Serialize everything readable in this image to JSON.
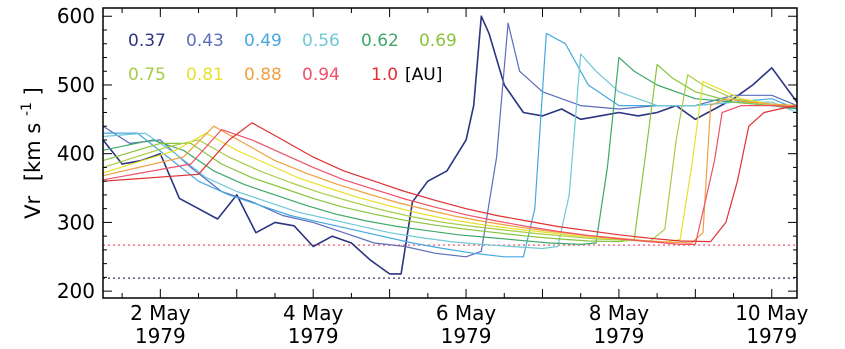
{
  "chart_data": {
    "type": "line",
    "title": "",
    "xlabel": "",
    "ylabel": {
      "main": "Vr",
      "unit_open": "[km s",
      "unit_exp": "-1",
      "unit_close": "]"
    },
    "xlim": [
      1.25,
      10.33
    ],
    "ylim": [
      190,
      612
    ],
    "y_ticks": [
      200,
      300,
      400,
      500,
      600
    ],
    "x_ticks": [
      {
        "x": 2,
        "day": "2 May",
        "year": "1979"
      },
      {
        "x": 4,
        "day": "4 May",
        "year": "1979"
      },
      {
        "x": 6,
        "day": "6 May",
        "year": "1979"
      },
      {
        "x": 8,
        "day": "8 May",
        "year": "1979"
      },
      {
        "x": 10,
        "day": "10 May",
        "year": "1979"
      }
    ],
    "reference_lines": [
      {
        "y": 267,
        "color": "#f07080"
      },
      {
        "y": 219,
        "color": "#555577"
      }
    ],
    "legend_unit": "[AU]",
    "series": [
      {
        "name": "0.37",
        "color": "#2b3580",
        "x": [
          1.25,
          1.5,
          1.75,
          2.0,
          2.25,
          2.5,
          2.75,
          3.0,
          3.25,
          3.5,
          3.75,
          4.0,
          4.25,
          4.5,
          4.75,
          5.0,
          5.15,
          5.3,
          5.5,
          5.75,
          6.0,
          6.1,
          6.2,
          6.3,
          6.5,
          6.75,
          7.0,
          7.25,
          7.5,
          7.75,
          8.0,
          8.25,
          8.5,
          8.75,
          9.0,
          9.25,
          9.5,
          9.75,
          10.0,
          10.33
        ],
        "y": [
          420,
          385,
          390,
          400,
          335,
          320,
          305,
          340,
          285,
          300,
          295,
          265,
          280,
          270,
          245,
          225,
          225,
          330,
          360,
          375,
          420,
          470,
          600,
          575,
          500,
          460,
          455,
          465,
          450,
          455,
          460,
          455,
          460,
          470,
          450,
          465,
          480,
          500,
          525,
          475
        ]
      },
      {
        "name": "0.43",
        "color": "#5b6dbb",
        "x": [
          1.25,
          1.6,
          2.0,
          2.4,
          2.8,
          3.2,
          3.6,
          4.0,
          4.4,
          4.8,
          5.2,
          5.6,
          6.0,
          6.2,
          6.4,
          6.55,
          6.7,
          7.0,
          7.5,
          8.0,
          8.5,
          9.0,
          9.5,
          10.0,
          10.33
        ],
        "y": [
          440,
          415,
          420,
          380,
          345,
          330,
          310,
          300,
          285,
          270,
          265,
          255,
          250,
          258,
          395,
          590,
          520,
          490,
          470,
          465,
          470,
          470,
          485,
          485,
          470
        ]
      },
      {
        "name": "0.49",
        "color": "#45a8e0",
        "x": [
          1.25,
          1.7,
          2.1,
          2.5,
          2.9,
          3.3,
          3.7,
          4.1,
          4.5,
          4.9,
          5.3,
          5.7,
          6.1,
          6.5,
          6.75,
          6.9,
          7.05,
          7.3,
          7.6,
          8.0,
          8.5,
          9.0,
          9.5,
          10.0,
          10.33
        ],
        "y": [
          430,
          430,
          395,
          360,
          340,
          325,
          310,
          300,
          290,
          280,
          270,
          262,
          255,
          250,
          250,
          320,
          575,
          560,
          500,
          470,
          470,
          470,
          475,
          480,
          465
        ]
      },
      {
        "name": "0.56",
        "color": "#70c8d8",
        "x": [
          1.25,
          1.8,
          2.2,
          2.6,
          3.0,
          3.4,
          3.8,
          4.2,
          4.6,
          5.0,
          5.4,
          5.8,
          6.2,
          6.6,
          7.0,
          7.2,
          7.35,
          7.5,
          7.7,
          8.0,
          8.5,
          9.0,
          9.5,
          10.0,
          10.33
        ],
        "y": [
          425,
          430,
          400,
          365,
          345,
          330,
          315,
          305,
          295,
          285,
          278,
          272,
          268,
          265,
          262,
          265,
          340,
          545,
          520,
          490,
          470,
          470,
          475,
          475,
          460
        ]
      },
      {
        "name": "0.62",
        "color": "#3ea86a",
        "x": [
          1.25,
          1.9,
          2.3,
          2.7,
          3.1,
          3.5,
          3.9,
          4.3,
          4.7,
          5.1,
          5.5,
          5.9,
          6.3,
          6.7,
          7.1,
          7.5,
          7.7,
          7.85,
          8.0,
          8.2,
          8.5,
          9.0,
          9.5,
          10.0,
          10.33
        ],
        "y": [
          405,
          420,
          405,
          375,
          355,
          340,
          325,
          312,
          302,
          294,
          288,
          282,
          278,
          274,
          270,
          268,
          270,
          380,
          540,
          520,
          500,
          480,
          475,
          470,
          465
        ]
      },
      {
        "name": "0.69",
        "color": "#88c43c",
        "x": [
          1.25,
          2.0,
          2.4,
          2.8,
          3.2,
          3.6,
          4.0,
          4.4,
          4.8,
          5.2,
          5.6,
          6.0,
          6.4,
          6.8,
          7.2,
          7.6,
          8.0,
          8.2,
          8.35,
          8.5,
          8.7,
          9.0,
          9.5,
          10.0,
          10.33
        ],
        "y": [
          390,
          415,
          415,
          385,
          365,
          350,
          335,
          322,
          312,
          303,
          296,
          290,
          285,
          280,
          276,
          273,
          272,
          275,
          400,
          530,
          510,
          490,
          475,
          470,
          468
        ]
      },
      {
        "name": "0.75",
        "color": "#a8cc48",
        "x": [
          1.25,
          2.1,
          2.5,
          2.9,
          3.3,
          3.7,
          4.1,
          4.5,
          4.9,
          5.3,
          5.7,
          6.1,
          6.5,
          6.9,
          7.3,
          7.7,
          8.1,
          8.4,
          8.6,
          8.75,
          8.9,
          9.1,
          9.5,
          10.0,
          10.33
        ],
        "y": [
          380,
          410,
          420,
          395,
          375,
          358,
          343,
          330,
          318,
          308,
          300,
          294,
          289,
          284,
          280,
          276,
          274,
          272,
          290,
          420,
          515,
          500,
          480,
          472,
          468
        ]
      },
      {
        "name": "0.81",
        "color": "#e8e030",
        "x": [
          1.25,
          2.2,
          2.6,
          3.0,
          3.4,
          3.8,
          4.2,
          4.6,
          5.0,
          5.4,
          5.8,
          6.2,
          6.6,
          7.0,
          7.4,
          7.8,
          8.2,
          8.6,
          8.8,
          8.95,
          9.1,
          9.3,
          9.6,
          10.0,
          10.33
        ],
        "y": [
          372,
          405,
          430,
          405,
          385,
          365,
          350,
          336,
          324,
          313,
          304,
          297,
          291,
          286,
          281,
          277,
          274,
          271,
          275,
          380,
          505,
          495,
          480,
          472,
          470
        ]
      },
      {
        "name": "0.88",
        "color": "#f0a040",
        "x": [
          1.25,
          2.3,
          2.7,
          3.1,
          3.5,
          3.9,
          4.3,
          4.7,
          5.1,
          5.5,
          5.9,
          6.3,
          6.7,
          7.1,
          7.5,
          7.9,
          8.3,
          8.7,
          8.95,
          9.1,
          9.2,
          9.4,
          9.7,
          10.0,
          10.33
        ],
        "y": [
          368,
          395,
          440,
          415,
          390,
          372,
          356,
          342,
          329,
          318,
          308,
          300,
          293,
          287,
          282,
          278,
          274,
          271,
          270,
          285,
          470,
          480,
          475,
          472,
          470
        ]
      },
      {
        "name": "0.94",
        "color": "#f0506a",
        "x": [
          1.25,
          2.4,
          2.8,
          3.2,
          3.6,
          4.0,
          4.4,
          4.8,
          5.2,
          5.6,
          6.0,
          6.4,
          6.8,
          7.2,
          7.6,
          8.0,
          8.4,
          8.8,
          9.0,
          9.15,
          9.25,
          9.35,
          9.6,
          10.0,
          10.33
        ],
        "y": [
          362,
          385,
          435,
          420,
          400,
          380,
          362,
          348,
          334,
          322,
          311,
          302,
          294,
          287,
          281,
          276,
          272,
          268,
          268,
          340,
          390,
          460,
          470,
          470,
          468
        ]
      },
      {
        "name": "1.0",
        "color": "#e03030",
        "x": [
          1.25,
          2.5,
          2.9,
          3.2,
          3.6,
          4.0,
          4.4,
          4.8,
          5.2,
          5.6,
          6.0,
          6.4,
          6.8,
          7.2,
          7.6,
          8.0,
          8.4,
          8.8,
          9.2,
          9.4,
          9.55,
          9.7,
          9.9,
          10.1,
          10.33
        ],
        "y": [
          360,
          370,
          420,
          445,
          420,
          395,
          375,
          360,
          345,
          332,
          320,
          310,
          302,
          294,
          288,
          282,
          277,
          273,
          272,
          300,
          360,
          440,
          460,
          465,
          470
        ]
      }
    ]
  }
}
